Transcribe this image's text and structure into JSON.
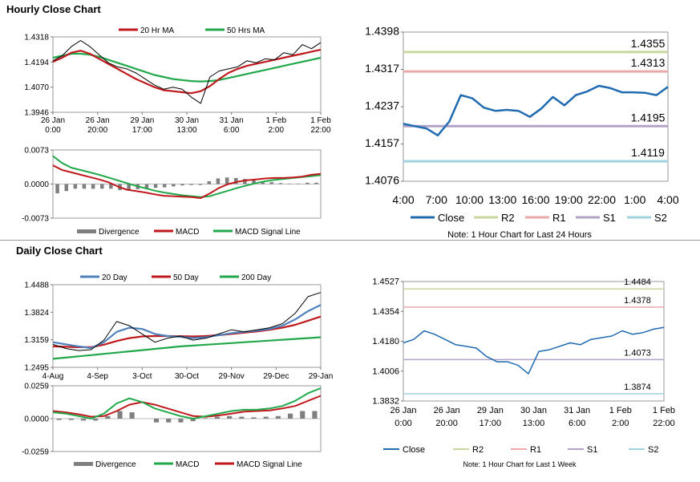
{
  "sections": {
    "hourly_title": "Hourly Close Chart",
    "daily_title": "Daily Close Chart"
  },
  "colors": {
    "ma_red": "#c0191d",
    "ma_green": "#20a84a",
    "ma_blue": "#4f81bd",
    "price_black": "#000000",
    "divergence": "#7f7f7f",
    "close_blue": "#1f6ab0",
    "r2": "#c6d89e",
    "r1": "#eba9a9",
    "s1": "#b3a2c8",
    "s2": "#9fd3dd"
  },
  "chart_data": [
    {
      "id": "hourly-price",
      "type": "line",
      "title": "",
      "legend": [
        {
          "name": "20 Hr MA",
          "color": "#c0191d"
        },
        {
          "name": "50 Hrs MA",
          "color": "#20a84a"
        }
      ],
      "legend_position": "top",
      "ylim": [
        1.3946,
        1.4318
      ],
      "yticks": [
        "1.4318",
        "1.4194",
        "1.4070",
        "1.3946"
      ],
      "xticks": [
        [
          "26 Jan",
          "0:00"
        ],
        [
          "26 Jan",
          "20:00"
        ],
        [
          "29 Jan",
          "17:00"
        ],
        [
          "30 Jan",
          "13:00"
        ],
        [
          "31 Jan",
          "6:00"
        ],
        [
          "1 Feb",
          "2:00"
        ],
        [
          "1 Feb",
          "22:00"
        ]
      ],
      "price": [
        1.42,
        1.4225,
        1.427,
        1.43,
        1.427,
        1.423,
        1.419,
        1.417,
        1.416,
        1.414,
        1.411,
        1.408,
        1.406,
        1.407,
        1.406,
        1.402,
        1.399,
        1.412,
        1.415,
        1.416,
        1.417,
        1.42,
        1.419,
        1.421,
        1.4205,
        1.424,
        1.423,
        1.428,
        1.426,
        1.429
      ],
      "ma20": [
        1.4195,
        1.4215,
        1.424,
        1.425,
        1.4235,
        1.421,
        1.4185,
        1.416,
        1.4135,
        1.411,
        1.409,
        1.407,
        1.4055,
        1.405,
        1.4045,
        1.404,
        1.405,
        1.4075,
        1.411,
        1.414,
        1.416,
        1.4175,
        1.4185,
        1.4195,
        1.4205,
        1.4215,
        1.4225,
        1.4235,
        1.4245,
        1.4255
      ],
      "ma50": [
        1.4215,
        1.4225,
        1.4235,
        1.4235,
        1.423,
        1.422,
        1.4205,
        1.419,
        1.4175,
        1.416,
        1.4145,
        1.413,
        1.412,
        1.411,
        1.4105,
        1.41,
        1.4098,
        1.41,
        1.4105,
        1.4115,
        1.4125,
        1.4135,
        1.4145,
        1.4155,
        1.4165,
        1.4175,
        1.4185,
        1.4195,
        1.4205,
        1.4215
      ]
    },
    {
      "id": "hourly-macd",
      "type": "line",
      "title": "",
      "legend": [
        {
          "name": "Divergence",
          "color": "#7f7f7f"
        },
        {
          "name": "MACD",
          "color": "#c0191d"
        },
        {
          "name": "MACD Signal Line",
          "color": "#20a84a"
        }
      ],
      "legend_position": "bottom",
      "ylim": [
        -0.0073,
        0.0073
      ],
      "yticks": [
        "0.0073",
        "0.0000",
        "-0.0073"
      ],
      "macd": [
        0.004,
        0.003,
        0.0025,
        0.002,
        0.0015,
        0.001,
        0.0004,
        -0.0005,
        -0.0012,
        -0.0015,
        -0.0018,
        -0.0022,
        -0.0025,
        -0.0026,
        -0.0027,
        -0.0028,
        -0.003,
        -0.002,
        -0.0008,
        0.0,
        0.0005,
        0.0008,
        0.001,
        0.0012,
        0.0013,
        0.0013,
        0.0014,
        0.0016,
        0.002,
        0.0022
      ],
      "signal": [
        0.006,
        0.0045,
        0.0035,
        0.003,
        0.0025,
        0.002,
        0.0014,
        0.0008,
        0.0002,
        -0.0004,
        -0.0009,
        -0.0014,
        -0.0018,
        -0.0021,
        -0.0024,
        -0.0026,
        -0.0028,
        -0.0026,
        -0.002,
        -0.0014,
        -0.0008,
        -0.0003,
        0.0002,
        0.0006,
        0.0009,
        0.0011,
        0.0013,
        0.0015,
        0.0017,
        0.0019
      ],
      "divergence": [
        -0.002,
        -0.0015,
        -0.001,
        -0.001,
        -0.001,
        -0.001,
        -0.001,
        -0.0013,
        -0.0014,
        -0.0011,
        -0.0009,
        -0.0008,
        -0.0007,
        -0.0005,
        -0.0003,
        -0.0002,
        -0.0002,
        0.0006,
        0.0012,
        0.0014,
        0.0013,
        0.0011,
        0.0008,
        0.0006,
        0.0004,
        0.0002,
        0.0001,
        0.0001,
        0.0003,
        0.0003
      ]
    },
    {
      "id": "hourly-24h",
      "type": "line",
      "title": "",
      "note": "Note: 1 Hour Chart for Last 24 Hours",
      "legend": [
        {
          "name": "Close",
          "color": "#1f6ab0"
        },
        {
          "name": "R2",
          "color": "#c6d89e"
        },
        {
          "name": "R1",
          "color": "#eba9a9"
        },
        {
          "name": "S1",
          "color": "#b3a2c8"
        },
        {
          "name": "S2",
          "color": "#9fd3dd"
        }
      ],
      "legend_position": "bottom",
      "ylim": [
        1.4076,
        1.4398
      ],
      "yticks": [
        "1.4398",
        "1.4317",
        "1.4237",
        "1.4157",
        "1.4076"
      ],
      "xticks": [
        "4:00",
        "7:00",
        "10:00",
        "13:00",
        "16:00",
        "19:00",
        "22:00",
        "1:00",
        "4:00"
      ],
      "levels": [
        {
          "name": "R2",
          "value": 1.4355,
          "label": "1.4355"
        },
        {
          "name": "R1",
          "value": 1.4313,
          "label": "1.4313"
        },
        {
          "name": "S1",
          "value": 1.4195,
          "label": "1.4195"
        },
        {
          "name": "S2",
          "value": 1.4119,
          "label": "1.4119"
        }
      ],
      "close": [
        1.42,
        1.4195,
        1.419,
        1.4175,
        1.4205,
        1.4262,
        1.4255,
        1.4235,
        1.4228,
        1.423,
        1.4228,
        1.4215,
        1.4233,
        1.4258,
        1.424,
        1.4262,
        1.427,
        1.4282,
        1.4277,
        1.4268,
        1.4268,
        1.4267,
        1.4262,
        1.428
      ]
    },
    {
      "id": "daily-price",
      "type": "line",
      "title": "",
      "legend": [
        {
          "name": "20 Day",
          "color": "#4f81bd"
        },
        {
          "name": "50 Day",
          "color": "#c0191d"
        },
        {
          "name": "200 Day",
          "color": "#20a84a"
        }
      ],
      "legend_position": "top",
      "ylim": [
        1.2495,
        1.4488
      ],
      "yticks": [
        "1.4488",
        "1.3824",
        "1.3159",
        "1.2495"
      ],
      "xticks": [
        "4-Aug",
        "4-Sep",
        "3-Oct",
        "30-Oct",
        "29-Nov",
        "29-Dec",
        "29-Jan"
      ],
      "price": [
        1.305,
        1.295,
        1.29,
        1.292,
        1.315,
        1.36,
        1.35,
        1.33,
        1.31,
        1.32,
        1.325,
        1.315,
        1.32,
        1.33,
        1.34,
        1.335,
        1.34,
        1.345,
        1.355,
        1.38,
        1.42,
        1.43
      ],
      "ma20": [
        1.31,
        1.305,
        1.3,
        1.296,
        1.31,
        1.335,
        1.345,
        1.342,
        1.33,
        1.325,
        1.323,
        1.32,
        1.322,
        1.327,
        1.332,
        1.335,
        1.338,
        1.342,
        1.35,
        1.365,
        1.385,
        1.4
      ],
      "ma50": [
        1.3,
        1.299,
        1.298,
        1.298,
        1.304,
        1.313,
        1.32,
        1.324,
        1.325,
        1.325,
        1.3245,
        1.324,
        1.325,
        1.327,
        1.33,
        1.333,
        1.336,
        1.34,
        1.345,
        1.352,
        1.362,
        1.372
      ],
      "ma200": [
        1.27,
        1.273,
        1.276,
        1.279,
        1.282,
        1.285,
        1.288,
        1.291,
        1.294,
        1.297,
        1.3,
        1.302,
        1.304,
        1.306,
        1.308,
        1.31,
        1.312,
        1.314,
        1.316,
        1.318,
        1.32,
        1.322
      ]
    },
    {
      "id": "daily-macd",
      "type": "line",
      "title": "",
      "legend": [
        {
          "name": "Divergence",
          "color": "#7f7f7f"
        },
        {
          "name": "MACD",
          "color": "#20a84a"
        },
        {
          "name": "MACD Signal Line",
          "color": "#c0191d"
        }
      ],
      "legend_position": "bottom",
      "ylim": [
        -0.0259,
        0.0259
      ],
      "yticks": [
        "0.0259",
        "0.0000",
        "-0.0259"
      ],
      "macd": [
        0.005,
        0.004,
        0.002,
        0.0,
        0.004,
        0.012,
        0.016,
        0.013,
        0.008,
        0.005,
        0.002,
        0.0,
        0.002,
        0.004,
        0.006,
        0.007,
        0.007,
        0.008,
        0.01,
        0.014,
        0.02,
        0.024
      ],
      "signal": [
        0.006,
        0.005,
        0.0035,
        0.0015,
        0.002,
        0.006,
        0.011,
        0.013,
        0.011,
        0.008,
        0.005,
        0.002,
        0.0015,
        0.0025,
        0.004,
        0.0055,
        0.006,
        0.0065,
        0.008,
        0.01,
        0.014,
        0.018
      ],
      "divergence": [
        -0.001,
        -0.001,
        -0.0015,
        -0.0015,
        0.002,
        0.006,
        0.005,
        0.0,
        -0.003,
        -0.003,
        -0.003,
        -0.002,
        0.0005,
        0.0015,
        0.002,
        0.0015,
        0.001,
        0.0015,
        0.002,
        0.004,
        0.006,
        0.006
      ]
    },
    {
      "id": "daily-week",
      "type": "line",
      "title": "",
      "note": "Note: 1 Hour Chart for Last 1 Week",
      "legend": [
        {
          "name": "Close",
          "color": "#1f6ab0"
        },
        {
          "name": "R2",
          "color": "#c6d89e"
        },
        {
          "name": "R1",
          "color": "#eba9a9"
        },
        {
          "name": "S1",
          "color": "#b3a2c8"
        },
        {
          "name": "S2",
          "color": "#9fd3dd"
        }
      ],
      "legend_position": "bottom",
      "ylim": [
        1.3832,
        1.4527
      ],
      "yticks": [
        "1.4527",
        "1.4354",
        "1.4180",
        "1.4006",
        "1.3832"
      ],
      "xticks": [
        [
          "26 Jan",
          "0:00"
        ],
        [
          "26 Jan",
          "20:00"
        ],
        [
          "29 Jan",
          "17:00"
        ],
        [
          "30 Jan",
          "13:00"
        ],
        [
          "31 Jan",
          "6:00"
        ],
        [
          "1 Feb",
          "2:00"
        ],
        [
          "1 Feb",
          "22:00"
        ]
      ],
      "levels": [
        {
          "name": "R2",
          "value": 1.4484,
          "label": "1.4484"
        },
        {
          "name": "R1",
          "value": 1.4378,
          "label": "1.4378"
        },
        {
          "name": "S1",
          "value": 1.4073,
          "label": "1.4073"
        },
        {
          "name": "S2",
          "value": 1.3874,
          "label": "1.3874"
        }
      ],
      "close": [
        1.417,
        1.419,
        1.424,
        1.422,
        1.419,
        1.416,
        1.415,
        1.414,
        1.409,
        1.406,
        1.406,
        1.404,
        1.399,
        1.412,
        1.413,
        1.415,
        1.417,
        1.416,
        1.419,
        1.42,
        1.421,
        1.424,
        1.422,
        1.423,
        1.425,
        1.426
      ]
    }
  ]
}
